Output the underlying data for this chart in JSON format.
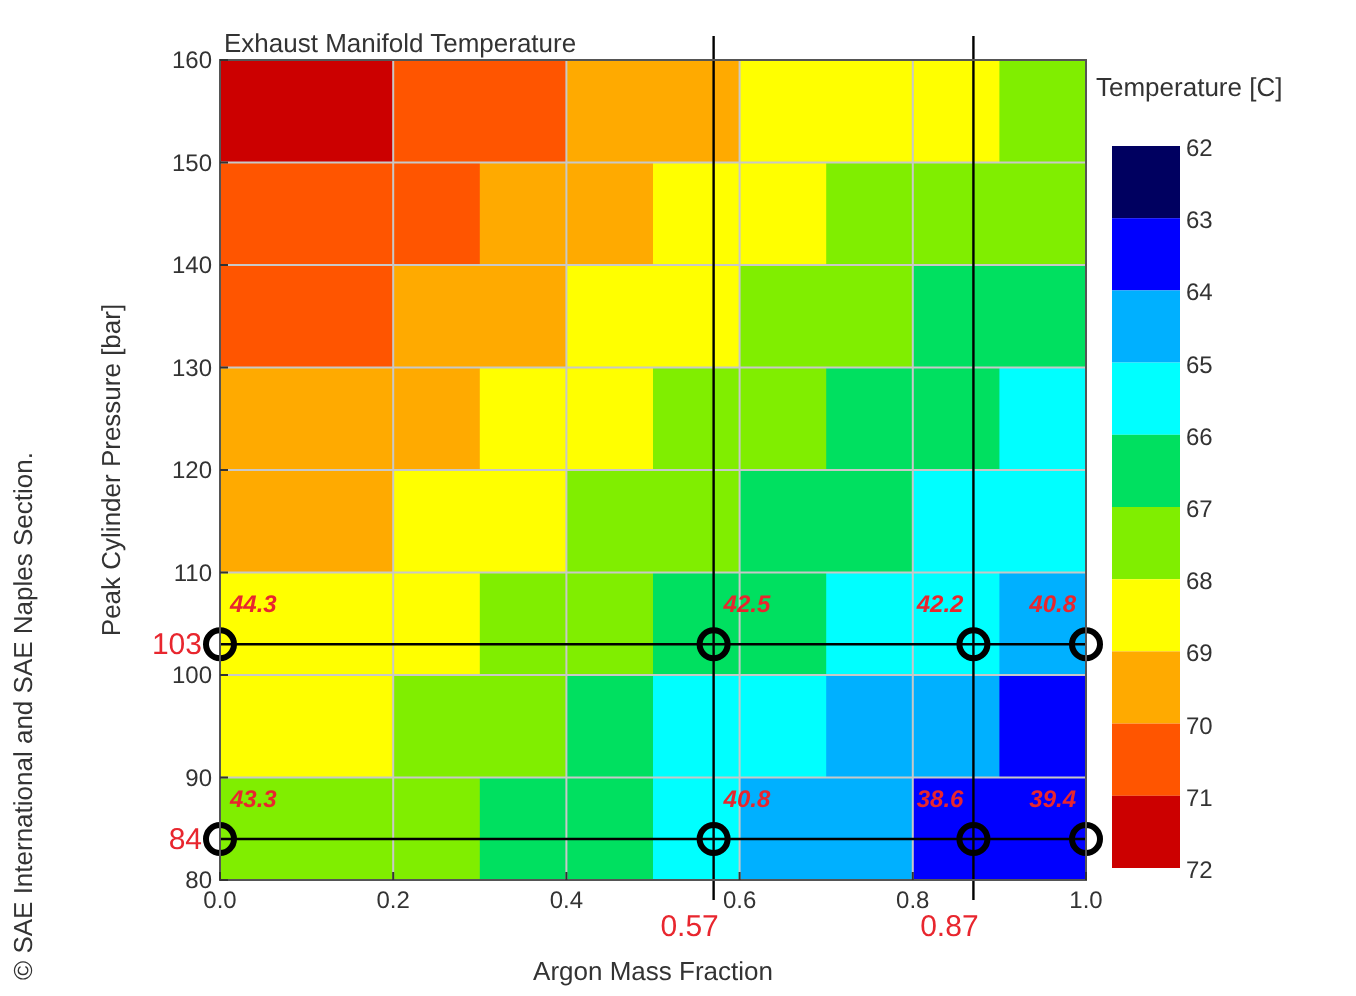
{
  "chart_data": {
    "type": "heatmap",
    "title": "Exhaust Manifold Temperature",
    "xlabel": "Argon Mass Fraction",
    "ylabel": "Peak Cylinder Pressure [bar]",
    "clabel": "Temperature [C]",
    "annotations": [
      "© SAE International and SAE Naples Section.",
      {
        "text": "44.3",
        "x": 0,
        "y": 103
      },
      {
        "text": "42.5",
        "x": 0.57,
        "y": 103
      },
      {
        "text": "42.2",
        "x": 0.87,
        "y": 103
      },
      {
        "text": "40.8",
        "x": 1,
        "y": 103
      },
      {
        "text": "43.3",
        "x": 0,
        "y": 84
      },
      {
        "text": "40.8",
        "x": 0.57,
        "y": 84
      },
      {
        "text": "38.6",
        "x": 0.87,
        "y": 84
      },
      {
        "text": "39.4",
        "x": 1,
        "y": 84
      }
    ],
    "x": [
      0.05,
      0.15,
      0.25,
      0.35,
      0.45,
      0.55,
      0.65,
      0.75,
      0.85,
      0.95
    ],
    "y": [
      155,
      145,
      135,
      125,
      115,
      105,
      95,
      85
    ],
    "xlim": [
      0,
      1
    ],
    "xticks": [
      {
        "value": 0,
        "label": "0.0"
      },
      {
        "value": 0.2,
        "label": "0.2"
      },
      {
        "value": 0.4,
        "label": "0.4"
      },
      {
        "value": 0.6,
        "label": "0.6"
      },
      {
        "value": 0.8,
        "label": "0.8"
      },
      {
        "value": 1,
        "label": "1.0"
      }
    ],
    "ylim": [
      80,
      160
    ],
    "yticks": [
      80,
      90,
      100,
      110,
      120,
      130,
      140,
      150,
      160
    ],
    "cells": [
      [
        71.5,
        71.5,
        70.5,
        70.5,
        69.5,
        69.5,
        68.5,
        68.5,
        68.5,
        67.5
      ],
      [
        70.5,
        70.5,
        70.5,
        69.5,
        69.5,
        68.5,
        68.5,
        67.5,
        67.5,
        67.5
      ],
      [
        70.5,
        70.5,
        69.5,
        69.5,
        68.5,
        68.5,
        67.5,
        67.5,
        66.5,
        66.5
      ],
      [
        69.5,
        69.5,
        69.5,
        68.5,
        68.5,
        67.5,
        67.5,
        66.5,
        66.5,
        65.5
      ],
      [
        69.5,
        69.5,
        68.5,
        68.5,
        67.5,
        67.5,
        66.5,
        66.5,
        65.5,
        65.5
      ],
      [
        68.5,
        68.5,
        68.5,
        67.5,
        67.5,
        66.5,
        66.5,
        65.5,
        65.5,
        64.5
      ],
      [
        68.5,
        68.5,
        67.5,
        67.5,
        66.5,
        65.5,
        65.5,
        64.5,
        64.5,
        63.5
      ],
      [
        67.5,
        67.5,
        67.5,
        66.5,
        66.5,
        65.5,
        64.5,
        64.5,
        63.5,
        63.5
      ]
    ],
    "clim": [
      72,
      62
    ],
    "cticks": [
      62,
      63,
      64,
      65,
      66,
      67,
      68,
      69,
      70,
      71,
      72
    ],
    "colors": [
      "#000060",
      "#0000ff",
      "#00b0ff",
      "#00ffff",
      "#00e060",
      "#80ee00",
      "#ffff00",
      "#ffaa00",
      "#ff5500",
      "#cc0000"
    ],
    "grid": true,
    "series": [
      {
        "type": "scatter",
        "color": "#000000",
        "marker": "circle",
        "x": [
          0,
          0.57,
          0.87,
          1,
          0,
          0.57,
          0.87,
          1
        ],
        "values": [
          103,
          103,
          103,
          103,
          84,
          84,
          84,
          84
        ]
      }
    ],
    "ref_lines": [
      {
        "axis": "y",
        "value": 103,
        "label": "103",
        "color": "#000000"
      },
      {
        "axis": "y",
        "value": 84,
        "label": "84",
        "color": "#000000"
      },
      {
        "axis": "x",
        "value": 0.57,
        "label": "0.57",
        "color": "#000000"
      },
      {
        "axis": "x",
        "value": 0.87,
        "label": "0.87",
        "color": "#000000"
      }
    ]
  }
}
